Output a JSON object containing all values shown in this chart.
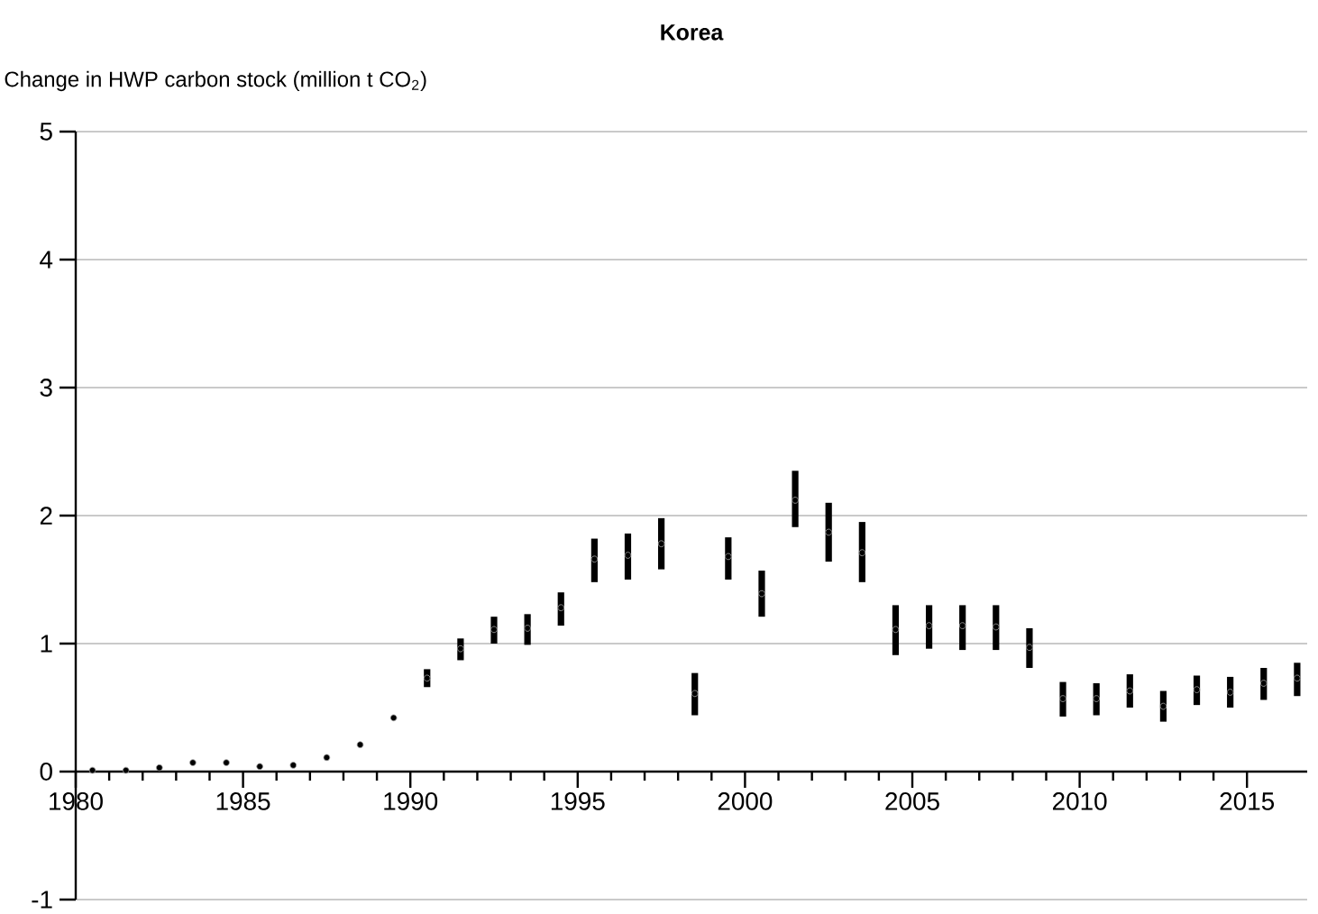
{
  "chart_data": {
    "type": "scatter",
    "title": "Korea",
    "ylabel": "Change in HWP carbon stock (million t CO$_{2}$)",
    "x": [
      1980.5,
      1981.5,
      1982.5,
      1983.5,
      1984.5,
      1985.5,
      1986.5,
      1987.5,
      1988.5,
      1989.5,
      1990.5,
      1991.5,
      1992.5,
      1993.5,
      1994.5,
      1995.5,
      1996.5,
      1997.5,
      1998.5,
      1999.5,
      2000.5,
      2001.5,
      2002.5,
      2003.5,
      2004.5,
      2005.5,
      2006.5,
      2007.5,
      2008.5,
      2009.5,
      2010.5,
      2011.5,
      2012.5,
      2013.5,
      2014.5,
      2015.5,
      2016.5
    ],
    "values": [
      0.01,
      0.01,
      0.03,
      0.07,
      0.07,
      0.04,
      0.05,
      0.11,
      0.21,
      0.42,
      0.73,
      0.96,
      1.11,
      1.12,
      1.28,
      1.66,
      1.69,
      1.78,
      0.61,
      1.68,
      1.39,
      2.12,
      1.87,
      1.71,
      1.11,
      1.14,
      1.14,
      1.13,
      0.97,
      0.57,
      0.57,
      0.63,
      0.51,
      0.64,
      0.62,
      0.69,
      0.73
    ],
    "errors": [
      null,
      null,
      null,
      null,
      null,
      null,
      null,
      null,
      null,
      null,
      [
        0.66,
        0.8
      ],
      [
        0.87,
        1.04
      ],
      [
        1.0,
        1.21
      ],
      [
        0.99,
        1.23
      ],
      [
        1.14,
        1.4
      ],
      [
        1.48,
        1.82
      ],
      [
        1.5,
        1.86
      ],
      [
        1.58,
        1.98
      ],
      [
        0.44,
        0.77
      ],
      [
        1.5,
        1.83
      ],
      [
        1.21,
        1.57
      ],
      [
        1.91,
        2.35
      ],
      [
        1.64,
        2.1
      ],
      [
        1.48,
        1.95
      ],
      [
        0.91,
        1.3
      ],
      [
        0.96,
        1.3
      ],
      [
        0.95,
        1.3
      ],
      [
        0.95,
        1.3
      ],
      [
        0.81,
        1.12
      ],
      [
        0.43,
        0.7
      ],
      [
        0.44,
        0.69
      ],
      [
        0.5,
        0.76
      ],
      [
        0.39,
        0.63
      ],
      [
        0.52,
        0.75
      ],
      [
        0.5,
        0.74
      ],
      [
        0.56,
        0.81
      ],
      [
        0.59,
        0.85
      ]
    ],
    "color": "#000000",
    "marker": "circle",
    "xlim": [
      1980,
      2016.8
    ],
    "xticks": [
      1980,
      1985,
      1990,
      1995,
      2000,
      2005,
      2010,
      2015
    ],
    "ylim": [
      -1,
      5
    ],
    "yticks": [
      -1,
      0,
      1,
      2,
      3,
      4,
      5
    ],
    "grid": "y"
  }
}
